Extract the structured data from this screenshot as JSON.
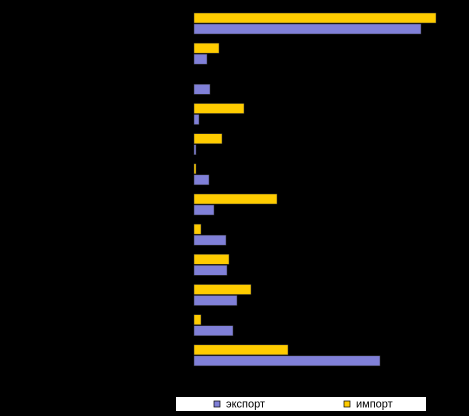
{
  "chart_data": {
    "type": "bar",
    "orientation": "horizontal",
    "categories": [
      null,
      null,
      null,
      null,
      null,
      null,
      null,
      null,
      null,
      null,
      null,
      null
    ],
    "series": [
      {
        "name": "экспорт",
        "color": "#8080d8",
        "values": [
          227,
          13,
          16,
          5,
          2,
          15,
          20,
          32,
          33,
          43,
          39,
          186
        ]
      },
      {
        "name": "импорт",
        "color": "#ffcc00",
        "values": [
          242,
          25,
          0,
          50,
          28,
          2,
          83,
          7,
          35,
          57,
          7,
          94
        ]
      }
    ],
    "xlim": [
      0,
      250
    ],
    "legend": "bottom"
  }
}
